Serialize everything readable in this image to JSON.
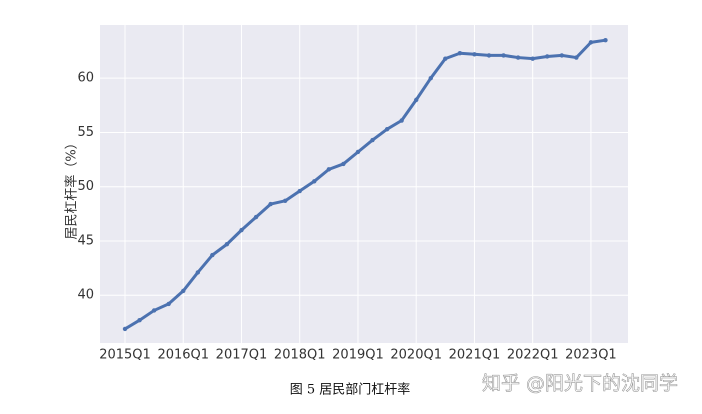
{
  "chart_data": {
    "type": "line",
    "y_label": "居民杠杆率（%）",
    "caption": "图 5  居民部门杠杆率",
    "watermark": "知乎 @阳光下的沈同学",
    "categories": [
      "2015Q1",
      null,
      null,
      null,
      "2016Q1",
      null,
      null,
      null,
      "2017Q1",
      null,
      null,
      null,
      "2018Q1",
      null,
      null,
      null,
      "2019Q1",
      null,
      null,
      null,
      "2020Q1",
      null,
      null,
      null,
      "2021Q1",
      null,
      null,
      null,
      "2022Q1",
      null,
      null,
      null,
      "2023Q1",
      null
    ],
    "series": [
      {
        "color": "#4c72b0",
        "values": [
          36.9,
          37.7,
          38.6,
          39.2,
          40.4,
          42.1,
          43.7,
          44.7,
          46.0,
          47.2,
          48.4,
          48.7,
          49.6,
          50.5,
          51.6,
          52.1,
          53.2,
          54.3,
          55.3,
          56.1,
          58.0,
          60.0,
          61.8,
          62.3,
          62.2,
          62.1,
          62.1,
          61.9,
          61.8,
          62.0,
          62.1,
          61.9,
          63.3,
          63.5
        ]
      }
    ],
    "ylim": [
      35.6,
      64.9
    ],
    "yticks": [
      40,
      45,
      50,
      55,
      60
    ],
    "grid": true
  }
}
